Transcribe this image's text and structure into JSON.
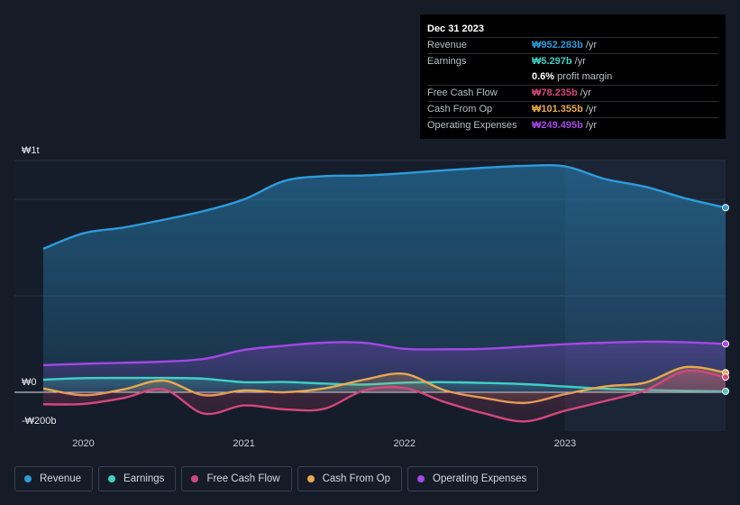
{
  "tooltip": {
    "date": "Dec 31 2023",
    "rows": [
      {
        "label": "Revenue",
        "value": "₩952.283b",
        "unit": "/yr",
        "color": "#2d9cdb"
      },
      {
        "label": "Earnings",
        "value": "₩5.297b",
        "unit": "/yr",
        "color": "#3fd1c4"
      },
      {
        "label": "",
        "value": "0.6%",
        "unit": "profit margin",
        "color": "#ffffff"
      },
      {
        "label": "Free Cash Flow",
        "value": "₩78.235b",
        "unit": "/yr",
        "color": "#d4477e"
      },
      {
        "label": "Cash From Op",
        "value": "₩101.355b",
        "unit": "/yr",
        "color": "#e8a94f"
      },
      {
        "label": "Operating Expenses",
        "value": "₩249.495b",
        "unit": "/yr",
        "color": "#a547e6"
      }
    ]
  },
  "legend": [
    {
      "label": "Revenue",
      "color": "#2d9cdb"
    },
    {
      "label": "Earnings",
      "color": "#3fd1c4"
    },
    {
      "label": "Free Cash Flow",
      "color": "#d4477e"
    },
    {
      "label": "Cash From Op",
      "color": "#e8a94f"
    },
    {
      "label": "Operating Expenses",
      "color": "#a547e6"
    }
  ],
  "chart_data": {
    "type": "area",
    "title": "",
    "unit": "KRW billions",
    "y_tick_labels": [
      {
        "value": 1200,
        "label": "₩1t"
      },
      {
        "value": 0,
        "label": "₩0"
      },
      {
        "value": -200,
        "label": "-₩200b"
      }
    ],
    "ylim": [
      -200,
      1200
    ],
    "xlim": [
      2019.75,
      2024.0
    ],
    "x_ticks": [
      {
        "value": 2020.0,
        "label": "2020"
      },
      {
        "value": 2021.0,
        "label": "2021"
      },
      {
        "value": 2022.0,
        "label": "2022"
      },
      {
        "value": 2023.0,
        "label": "2023"
      }
    ],
    "highlight_from": 2023.0,
    "series": [
      {
        "name": "Revenue",
        "color": "#2d9cdb",
        "fill": true,
        "x": [
          2019.75,
          2020.0,
          2020.25,
          2020.5,
          2020.75,
          2021.0,
          2021.25,
          2021.5,
          2021.75,
          2022.0,
          2022.25,
          2022.5,
          2022.75,
          2023.0,
          2023.25,
          2023.5,
          2023.75,
          2024.0
        ],
        "values": [
          740,
          820,
          850,
          890,
          935,
          995,
          1090,
          1115,
          1118,
          1130,
          1145,
          1158,
          1168,
          1165,
          1100,
          1060,
          1000,
          952.283
        ]
      },
      {
        "name": "Operating Expenses",
        "color": "#a547e6",
        "fill": true,
        "x": [
          2019.75,
          2020.0,
          2020.25,
          2020.5,
          2020.75,
          2021.0,
          2021.25,
          2021.5,
          2021.75,
          2022.0,
          2022.25,
          2022.5,
          2022.75,
          2023.0,
          2023.25,
          2023.5,
          2023.75,
          2024.0
        ],
        "values": [
          140,
          147,
          152,
          158,
          172,
          218,
          240,
          256,
          255,
          224,
          222,
          224,
          236,
          248,
          256,
          261,
          258,
          249.495
        ]
      },
      {
        "name": "Earnings",
        "color": "#3fd1c4",
        "fill": true,
        "x": [
          2019.75,
          2020.0,
          2020.25,
          2020.5,
          2020.75,
          2021.0,
          2021.25,
          2021.5,
          2021.75,
          2022.0,
          2022.25,
          2022.5,
          2022.75,
          2023.0,
          2023.25,
          2023.5,
          2023.75,
          2024.0
        ],
        "values": [
          65,
          73,
          74,
          74,
          70,
          52,
          53,
          45,
          40,
          50,
          52,
          48,
          42,
          30,
          18,
          12,
          8,
          5.297
        ]
      },
      {
        "name": "Cash From Op",
        "color": "#e8a94f",
        "fill": true,
        "x": [
          2019.75,
          2020.0,
          2020.25,
          2020.5,
          2020.75,
          2021.0,
          2021.25,
          2021.5,
          2021.75,
          2022.0,
          2022.25,
          2022.5,
          2022.75,
          2023.0,
          2023.25,
          2023.5,
          2023.75,
          2024.0
        ],
        "values": [
          20,
          -15,
          15,
          60,
          -15,
          10,
          0,
          20,
          65,
          95,
          10,
          -30,
          -55,
          -10,
          30,
          50,
          130,
          101.355
        ]
      },
      {
        "name": "Free Cash Flow",
        "color": "#d4477e",
        "fill": true,
        "x": [
          2019.75,
          2020.0,
          2020.25,
          2020.5,
          2020.75,
          2021.0,
          2021.25,
          2021.5,
          2021.75,
          2022.0,
          2022.25,
          2022.5,
          2022.75,
          2023.0,
          2023.25,
          2023.5,
          2023.75,
          2024.0
        ],
        "values": [
          -62,
          -60,
          -30,
          15,
          -110,
          -68,
          -88,
          -85,
          10,
          22,
          -50,
          -110,
          -150,
          -95,
          -45,
          10,
          110,
          78.235
        ]
      }
    ]
  }
}
